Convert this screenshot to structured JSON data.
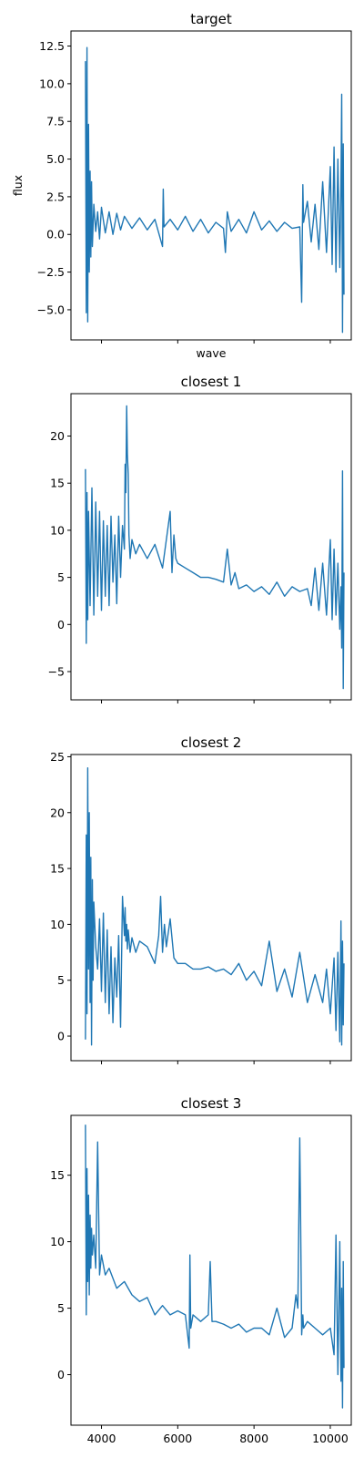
{
  "chart_data": [
    {
      "type": "line",
      "title": "target",
      "xlabel": "wave",
      "ylabel": "flux",
      "xlim": [
        3200,
        10550
      ],
      "ylim": [
        -7,
        13.5
      ],
      "xticks": [
        4000,
        6000,
        8000,
        10000
      ],
      "show_xticklabels": false,
      "yticks": [
        -5.0,
        -2.5,
        0.0,
        2.5,
        5.0,
        7.5,
        10.0,
        12.5
      ],
      "yticklabels": [
        "−5.0",
        "−2.5",
        "0.0",
        "2.5",
        "5.0",
        "7.5",
        "10.0",
        "12.5"
      ],
      "grid": false,
      "series": [
        {
          "color": "#1f77b4",
          "x": [
            3580,
            3600,
            3620,
            3640,
            3660,
            3680,
            3700,
            3720,
            3740,
            3760,
            3800,
            3850,
            3900,
            3950,
            4000,
            4100,
            4200,
            4300,
            4400,
            4500,
            4600,
            4800,
            5000,
            5200,
            5400,
            5600,
            5620,
            5640,
            5800,
            6000,
            6200,
            6400,
            6600,
            6800,
            7000,
            7200,
            7250,
            7300,
            7400,
            7600,
            7800,
            8000,
            8200,
            8400,
            8600,
            8800,
            9000,
            9200,
            9250,
            9280,
            9300,
            9400,
            9500,
            9600,
            9700,
            9800,
            9900,
            10000,
            10050,
            10100,
            10150,
            10200,
            10250,
            10280,
            10300,
            10320,
            10340,
            10360
          ],
          "y": [
            11.5,
            -5.2,
            12.4,
            -5.8,
            7.3,
            -2.5,
            4.2,
            -1.5,
            3.5,
            -0.8,
            2.0,
            0.2,
            1.5,
            -0.3,
            1.8,
            0.1,
            1.5,
            0.0,
            1.4,
            0.3,
            1.2,
            0.4,
            1.1,
            0.3,
            1.0,
            -0.8,
            3.0,
            0.5,
            1.0,
            0.3,
            1.2,
            0.2,
            1.0,
            0.1,
            0.8,
            0.4,
            -1.2,
            1.5,
            0.2,
            1.0,
            0.1,
            1.5,
            0.3,
            0.9,
            0.2,
            0.8,
            0.4,
            0.5,
            -4.5,
            3.3,
            0.8,
            2.2,
            -0.5,
            2.0,
            -1.0,
            3.5,
            -1.2,
            4.5,
            -2.0,
            5.8,
            -2.5,
            5.0,
            -2.2,
            3.5,
            9.3,
            -6.5,
            6.0,
            -4.0
          ]
        }
      ]
    },
    {
      "type": "line",
      "title": "closest 1",
      "xlabel": "",
      "ylabel": "",
      "xlim": [
        3200,
        10550
      ],
      "ylim": [
        -8,
        24.5
      ],
      "xticks": [
        4000,
        6000,
        8000,
        10000
      ],
      "show_xticklabels": false,
      "yticks": [
        -5,
        0,
        5,
        10,
        15,
        20
      ],
      "yticklabels": [
        "−5",
        "0",
        "5",
        "10",
        "15",
        "20"
      ],
      "grid": false,
      "series": [
        {
          "color": "#1f77b4",
          "x": [
            3580,
            3600,
            3620,
            3640,
            3660,
            3700,
            3750,
            3800,
            3850,
            3900,
            3950,
            4000,
            4050,
            4100,
            4150,
            4200,
            4250,
            4300,
            4350,
            4400,
            4450,
            4500,
            4550,
            4600,
            4620,
            4640,
            4660,
            4680,
            4700,
            4720,
            4750,
            4800,
            4900,
            5000,
            5200,
            5400,
            5600,
            5800,
            5850,
            5900,
            5950,
            6000,
            6200,
            6400,
            6600,
            6800,
            7000,
            7200,
            7300,
            7400,
            7500,
            7600,
            7800,
            8000,
            8200,
            8400,
            8600,
            8800,
            9000,
            9200,
            9400,
            9500,
            9600,
            9700,
            9800,
            9900,
            10000,
            10050,
            10100,
            10150,
            10200,
            10250,
            10280,
            10300,
            10320,
            10340,
            10360
          ],
          "y": [
            16.5,
            -2.0,
            14.0,
            0.5,
            12.0,
            2.0,
            14.5,
            1.0,
            13.0,
            3.0,
            12.0,
            1.5,
            11.0,
            3.0,
            10.5,
            2.0,
            11.5,
            4.5,
            9.5,
            2.2,
            11.5,
            5.0,
            10.5,
            8.0,
            17.0,
            14.0,
            23.2,
            18.0,
            16.0,
            9.5,
            7.0,
            9.0,
            7.5,
            8.5,
            7.0,
            8.5,
            6.0,
            12.0,
            5.5,
            9.5,
            7.0,
            6.5,
            6.0,
            5.5,
            5.0,
            5.0,
            4.8,
            4.5,
            8.0,
            4.2,
            5.5,
            3.8,
            4.2,
            3.5,
            4.0,
            3.2,
            4.5,
            3.0,
            4.0,
            3.5,
            3.8,
            2.0,
            6.0,
            1.5,
            6.5,
            1.0,
            9.0,
            0.5,
            8.0,
            1.0,
            6.5,
            -0.5,
            4.0,
            -2.5,
            16.3,
            -6.8,
            5.5
          ]
        }
      ]
    },
    {
      "type": "line",
      "title": "closest 2",
      "xlabel": "",
      "ylabel": "",
      "xlim": [
        3200,
        10550
      ],
      "ylim": [
        -2.2,
        25.2
      ],
      "xticks": [
        4000,
        6000,
        8000,
        10000
      ],
      "show_xticklabels": false,
      "yticks": [
        0,
        5,
        10,
        15,
        20,
        25
      ],
      "yticklabels": [
        "0",
        "5",
        "10",
        "15",
        "20",
        "25"
      ],
      "grid": false,
      "series": [
        {
          "color": "#1f77b4",
          "x": [
            3580,
            3600,
            3620,
            3640,
            3660,
            3680,
            3700,
            3720,
            3740,
            3760,
            3780,
            3800,
            3850,
            3900,
            3950,
            4000,
            4050,
            4100,
            4150,
            4200,
            4250,
            4300,
            4350,
            4400,
            4450,
            4500,
            4550,
            4600,
            4620,
            4640,
            4660,
            4680,
            4700,
            4750,
            4800,
            4900,
            5000,
            5200,
            5400,
            5500,
            5550,
            5600,
            5650,
            5700,
            5800,
            5900,
            6000,
            6200,
            6400,
            6600,
            6800,
            7000,
            7200,
            7400,
            7600,
            7800,
            8000,
            8200,
            8400,
            8600,
            8800,
            9000,
            9200,
            9400,
            9600,
            9800,
            9900,
            10000,
            10100,
            10150,
            10200,
            10250,
            10280,
            10300,
            10320,
            10340,
            10360
          ],
          "y": [
            -0.3,
            18.0,
            2.0,
            24.0,
            6.0,
            20.0,
            3.0,
            16.0,
            -0.8,
            14.0,
            5.0,
            12.0,
            8.0,
            6.0,
            10.5,
            4.0,
            11.0,
            3.0,
            9.5,
            2.0,
            8.0,
            1.2,
            7.0,
            3.5,
            9.0,
            0.8,
            12.5,
            9.0,
            11.5,
            8.5,
            10.0,
            7.8,
            9.5,
            7.5,
            8.8,
            7.5,
            8.5,
            8.0,
            6.5,
            9.0,
            12.5,
            7.5,
            10.0,
            8.0,
            10.5,
            7.0,
            6.5,
            6.5,
            6.0,
            6.0,
            6.2,
            5.8,
            6.0,
            5.5,
            6.5,
            5.0,
            5.8,
            4.5,
            8.5,
            4.0,
            6.0,
            3.5,
            7.5,
            3.0,
            5.5,
            3.0,
            6.0,
            2.0,
            7.0,
            0.5,
            7.5,
            -0.5,
            10.3,
            -0.8,
            8.5,
            1.0,
            6.5
          ]
        }
      ]
    },
    {
      "type": "line",
      "title": "closest 3",
      "xlabel": "",
      "ylabel": "",
      "xlim": [
        3200,
        10550
      ],
      "ylim": [
        -3.8,
        19.5
      ],
      "xticks": [
        4000,
        6000,
        8000,
        10000
      ],
      "show_xticklabels": true,
      "xticklabels": [
        "4000",
        "6000",
        "8000",
        "10000"
      ],
      "yticks": [
        0,
        5,
        10,
        15
      ],
      "yticklabels": [
        "0",
        "5",
        "10",
        "15"
      ],
      "grid": false,
      "series": [
        {
          "color": "#1f77b4",
          "x": [
            3580,
            3600,
            3620,
            3640,
            3660,
            3680,
            3700,
            3720,
            3740,
            3760,
            3800,
            3850,
            3900,
            3950,
            4000,
            4100,
            4200,
            4400,
            4600,
            4800,
            5000,
            5200,
            5400,
            5600,
            5800,
            6000,
            6200,
            6300,
            6320,
            6340,
            6400,
            6600,
            6800,
            6850,
            6900,
            7000,
            7200,
            7400,
            7600,
            7800,
            8000,
            8200,
            8400,
            8600,
            8800,
            9000,
            9100,
            9150,
            9200,
            9220,
            9250,
            9280,
            9300,
            9400,
            9600,
            9800,
            10000,
            10100,
            10150,
            10200,
            10250,
            10280,
            10300,
            10320,
            10340,
            10360
          ],
          "y": [
            18.8,
            4.5,
            15.5,
            7.0,
            13.5,
            6.0,
            12.0,
            8.0,
            11.0,
            9.0,
            10.5,
            8.0,
            17.5,
            7.5,
            9.0,
            7.5,
            8.0,
            6.5,
            7.0,
            6.0,
            5.5,
            5.8,
            4.5,
            5.2,
            4.5,
            4.8,
            4.5,
            2.0,
            9.0,
            3.5,
            4.5,
            4.0,
            4.5,
            8.5,
            4.0,
            4.0,
            3.8,
            3.5,
            3.8,
            3.2,
            3.5,
            3.5,
            3.0,
            5.0,
            2.8,
            3.5,
            6.0,
            5.0,
            17.8,
            12.0,
            3.0,
            4.5,
            3.5,
            4.0,
            3.5,
            3.0,
            3.5,
            1.5,
            10.5,
            0.0,
            10.0,
            -0.5,
            6.5,
            -2.5,
            8.5,
            0.5
          ]
        }
      ]
    }
  ]
}
